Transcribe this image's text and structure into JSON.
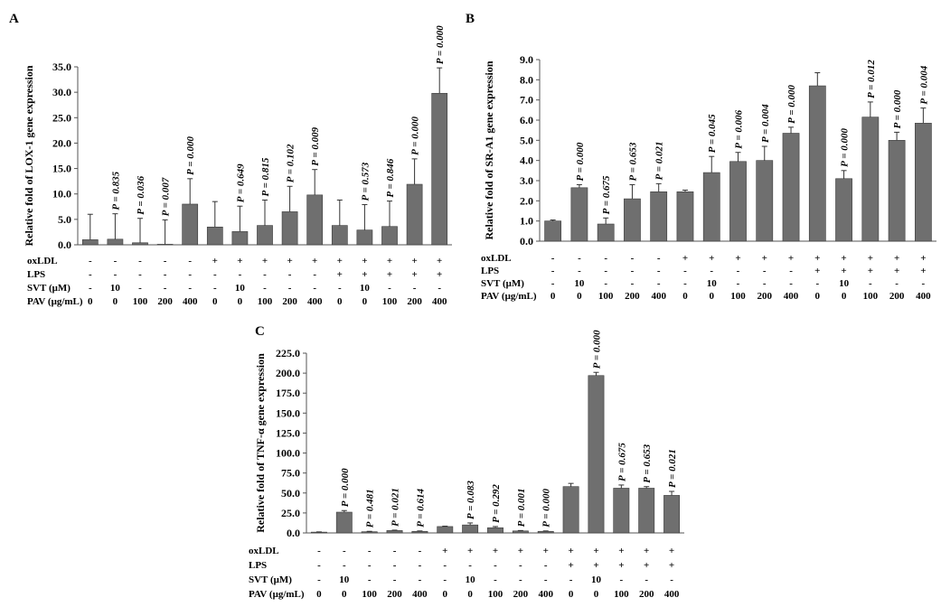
{
  "chart_data": [
    {
      "type": "bar",
      "panel": "A",
      "ylabel": "Relative fold of LOX-1 gene expression",
      "ylim": [
        0,
        35
      ],
      "ystep": 5,
      "ytick_labels": [
        "0.0",
        "5.0",
        "10.0",
        "15.0",
        "20.0",
        "25.0",
        "30.0",
        "35.0"
      ],
      "values": [
        1.0,
        1.1,
        0.4,
        0.1,
        8.0,
        3.5,
        2.6,
        3.8,
        6.5,
        9.8,
        3.8,
        2.9,
        3.6,
        11.9,
        29.8
      ],
      "errors": [
        5.0,
        5.0,
        4.8,
        4.8,
        5.0,
        5.0,
        5.0,
        5.0,
        5.0,
        5.0,
        5.0,
        5.0,
        5.0,
        5.0,
        5.0
      ],
      "p_values": [
        "",
        "P = 0.835",
        "P = 0.036",
        "P = 0.007",
        "P = 0.000",
        "",
        "P = 0.649",
        "P = 0.815",
        "P = 0.102",
        "P = 0.009",
        "",
        "P = 0.573",
        "P = 0.846",
        "P = 0.000",
        "P = 0.000"
      ]
    },
    {
      "type": "bar",
      "panel": "B",
      "ylabel": "Relative fold of SR-A1 gene expression",
      "ylim": [
        0,
        9
      ],
      "ystep": 1,
      "ytick_labels": [
        "0.0",
        "1.0",
        "2.0",
        "3.0",
        "4.0",
        "5.0",
        "6.0",
        "7.0",
        "8.0",
        "9.0"
      ],
      "values": [
        1.0,
        2.65,
        0.85,
        2.1,
        2.45,
        2.45,
        3.4,
        3.95,
        4.0,
        5.35,
        7.7,
        3.1,
        6.15,
        5.0,
        5.85
      ],
      "errors": [
        0.05,
        0.15,
        0.3,
        0.7,
        0.4,
        0.08,
        0.8,
        0.45,
        0.7,
        0.3,
        0.65,
        0.4,
        0.75,
        0.4,
        0.75
      ],
      "p_values": [
        "",
        "P = 0.000",
        "P = 0.675",
        "P = 0.653",
        "P = 0.021",
        "",
        "P = 0.045",
        "P = 0.006",
        "P = 0.004",
        "P = 0.000",
        "",
        "P = 0.000",
        "P = 0.012",
        "P = 0.000",
        "P = 0.004"
      ]
    },
    {
      "type": "bar",
      "panel": "C",
      "ylabel": "Relative fold of TNF-α gene expression",
      "ylim": [
        0,
        225
      ],
      "ystep": 25,
      "ytick_labels": [
        "0.0",
        "25.0",
        "50.0",
        "75.0",
        "100.0",
        "125.0",
        "150.0",
        "175.0",
        "200.0",
        "225.0"
      ],
      "values": [
        1,
        26,
        1.5,
        3,
        2,
        8,
        10,
        6.5,
        2.5,
        2,
        58,
        197,
        56,
        56,
        47
      ],
      "errors": [
        0.3,
        2,
        0.5,
        0.5,
        0.5,
        0.5,
        2.5,
        1.5,
        0.5,
        0.5,
        4,
        4,
        4,
        2,
        5
      ],
      "p_values": [
        "",
        "P = 0.000",
        "P = 0.481",
        "P = 0.021",
        "P = 0.614",
        "",
        "P = 0.083",
        "P = 0.292",
        "P = 0.001",
        "P = 0.000",
        "",
        "P = 0.000",
        "P = 0.675",
        "P = 0.653",
        "P = 0.021"
      ]
    }
  ],
  "conditions": {
    "rows": [
      {
        "name": "oxLDL",
        "values": [
          "-",
          "-",
          "-",
          "-",
          "-",
          "+",
          "+",
          "+",
          "+",
          "+",
          "+",
          "+",
          "+",
          "+",
          "+"
        ]
      },
      {
        "name": "LPS",
        "values": [
          "-",
          "-",
          "-",
          "-",
          "-",
          "-",
          "-",
          "-",
          "-",
          "-",
          "+",
          "+",
          "+",
          "+",
          "+"
        ]
      },
      {
        "name": "SVT (μM)",
        "values": [
          "-",
          "10",
          "-",
          "-",
          "-",
          "-",
          "10",
          "-",
          "-",
          "-",
          "-",
          "10",
          "-",
          "-",
          "-"
        ]
      },
      {
        "name": "PAV  (μg/mL)",
        "values": [
          "0",
          "0",
          "100",
          "200",
          "400",
          "0",
          "0",
          "100",
          "200",
          "400",
          "0",
          "0",
          "100",
          "200",
          "400"
        ]
      }
    ],
    "rows_c": [
      {
        "name": "oxLDL",
        "values": [
          "-",
          "-",
          "-",
          "-",
          "-",
          "+",
          "+",
          "+",
          "+",
          "+",
          "+",
          "+",
          "+",
          "+",
          "+"
        ]
      },
      {
        "name": "LPS",
        "values": [
          "-",
          "-",
          "-",
          "-",
          "-",
          "-",
          "-",
          "-",
          "-",
          "-",
          "+",
          "+",
          "+",
          "+",
          "+"
        ]
      },
      {
        "name": "SVT (μM)",
        "values": [
          "-",
          "10",
          "-",
          "-",
          "-",
          "-",
          "10",
          "-",
          "-",
          "-",
          "-",
          "10",
          "-",
          "-",
          "-"
        ]
      },
      {
        "name": "PAV (μg/mL)",
        "values": [
          "0",
          "0",
          "100",
          "200",
          "400",
          "0",
          "0",
          "100",
          "200",
          "400",
          "0",
          "0",
          "100",
          "200",
          "400"
        ]
      }
    ]
  },
  "colors": {
    "bar": "#6f6f6f",
    "bar_stroke": "#3a3a3a",
    "axis": "#555555",
    "error": "#333333"
  }
}
